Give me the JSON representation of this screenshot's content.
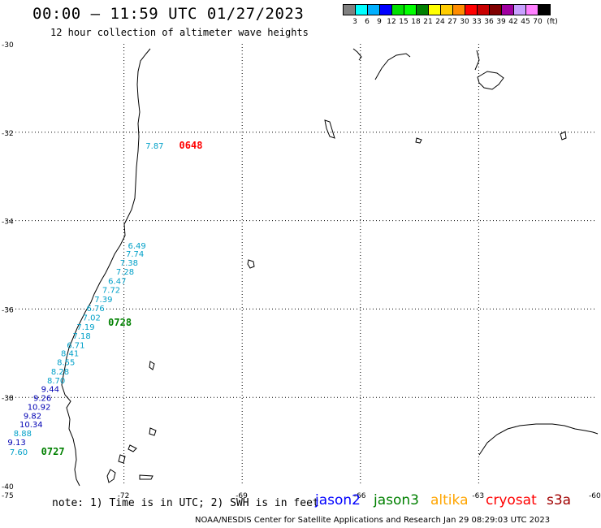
{
  "title": "00:00 – 11:59 UTC 01/27/2023",
  "subtitle": "12 hour collection of altimeter wave heights",
  "colorbar": {
    "colors": [
      "#808080",
      "#00ffff",
      "#00b0ff",
      "#0000ff",
      "#00e000",
      "#00ff00",
      "#008000",
      "#ffff00",
      "#ffcc00",
      "#ff8c00",
      "#ff0000",
      "#c80000",
      "#800000",
      "#a000a0",
      "#c8a0ff",
      "#ff80ff",
      "#000000"
    ],
    "labels": [
      "3",
      "6",
      "9",
      "12",
      "15",
      "18",
      "21",
      "24",
      "27",
      "30",
      "33",
      "36",
      "39",
      "42",
      "45",
      "70",
      "(ft)"
    ]
  },
  "axes": {
    "lat_labels": [
      "-30",
      "-32",
      "-34",
      "-36",
      "-38",
      "-40"
    ],
    "lon_labels": [
      "-75",
      "-72",
      "-69",
      "-66",
      "-63",
      "-60"
    ]
  },
  "observations": [
    {
      "value": "7.87",
      "color": "#00a0c8",
      "lat": -32.37,
      "lon": -71.45
    },
    {
      "value": "6.49",
      "color": "#00a0c8",
      "lat": -34.63,
      "lon": -71.9
    },
    {
      "value": "7.74",
      "color": "#00a0c8",
      "lat": -34.82,
      "lon": -71.95
    },
    {
      "value": "7.38",
      "color": "#00a0c8",
      "lat": -35.02,
      "lon": -72.1
    },
    {
      "value": "7.28",
      "color": "#00a0c8",
      "lat": -35.22,
      "lon": -72.2
    },
    {
      "value": "6.47",
      "color": "#00a0c8",
      "lat": -35.43,
      "lon": -72.4
    },
    {
      "value": "7.72",
      "color": "#00a0c8",
      "lat": -35.63,
      "lon": -72.55
    },
    {
      "value": "7.39",
      "color": "#00a0c8",
      "lat": -35.85,
      "lon": -72.75
    },
    {
      "value": "6.76",
      "color": "#00a0c8",
      "lat": -36.05,
      "lon": -72.95
    },
    {
      "value": "7.02",
      "color": "#00a0c8",
      "lat": -36.26,
      "lon": -73.05
    },
    {
      "value": "7.19",
      "color": "#00a0c8",
      "lat": -36.47,
      "lon": -73.2
    },
    {
      "value": "7.18",
      "color": "#00a0c8",
      "lat": -36.67,
      "lon": -73.3
    },
    {
      "value": "6.71",
      "color": "#00a0c8",
      "lat": -36.88,
      "lon": -73.45
    },
    {
      "value": "8.41",
      "color": "#00a0c8",
      "lat": -37.07,
      "lon": -73.6
    },
    {
      "value": "8.55",
      "color": "#00a0c8",
      "lat": -37.27,
      "lon": -73.7
    },
    {
      "value": "8.28",
      "color": "#00a0c8",
      "lat": -37.48,
      "lon": -73.85
    },
    {
      "value": "8.70",
      "color": "#00a0c8",
      "lat": -37.68,
      "lon": -73.95
    },
    {
      "value": "9.44",
      "color": "#0000b4",
      "lat": -37.88,
      "lon": -74.1
    },
    {
      "value": "9.26",
      "color": "#0000b4",
      "lat": -38.08,
      "lon": -74.3
    },
    {
      "value": "10.92",
      "color": "#0000b4",
      "lat": -38.28,
      "lon": -74.45
    },
    {
      "value": "9.82",
      "color": "#0000b4",
      "lat": -38.48,
      "lon": -74.55
    },
    {
      "value": "10.34",
      "color": "#0000b4",
      "lat": -38.68,
      "lon": -74.65
    },
    {
      "value": "8.88",
      "color": "#00a0c8",
      "lat": -38.88,
      "lon": -74.8
    },
    {
      "value": "9.13",
      "color": "#0000b4",
      "lat": -39.08,
      "lon": -74.95
    },
    {
      "value": "7.60",
      "color": "#00a0c8",
      "lat": -39.3,
      "lon": -74.9
    }
  ],
  "time_labels": [
    {
      "text": "0648",
      "color": "#ff0000",
      "lat": -32.37,
      "lon": -70.6
    },
    {
      "text": "0728",
      "color": "#008000",
      "lat": -36.38,
      "lon": -72.4
    },
    {
      "text": "0727",
      "color": "#008000",
      "lat": -39.3,
      "lon": -74.1
    }
  ],
  "note": "note: 1) Time is in UTC; 2) SWH is in feet",
  "satellites": [
    {
      "name": "jason2",
      "color": "#0000ff"
    },
    {
      "name": "jason3",
      "color": "#008000"
    },
    {
      "name": "altika",
      "color": "#ffa500"
    },
    {
      "name": "cryosat",
      "color": "#ff0000"
    },
    {
      "name": "s3a",
      "color": "#a00000"
    }
  ],
  "credit": "NOAA/NESDIS Center for Satellite Applications and Research    Jan 29 08:29:03 UTC 2023"
}
